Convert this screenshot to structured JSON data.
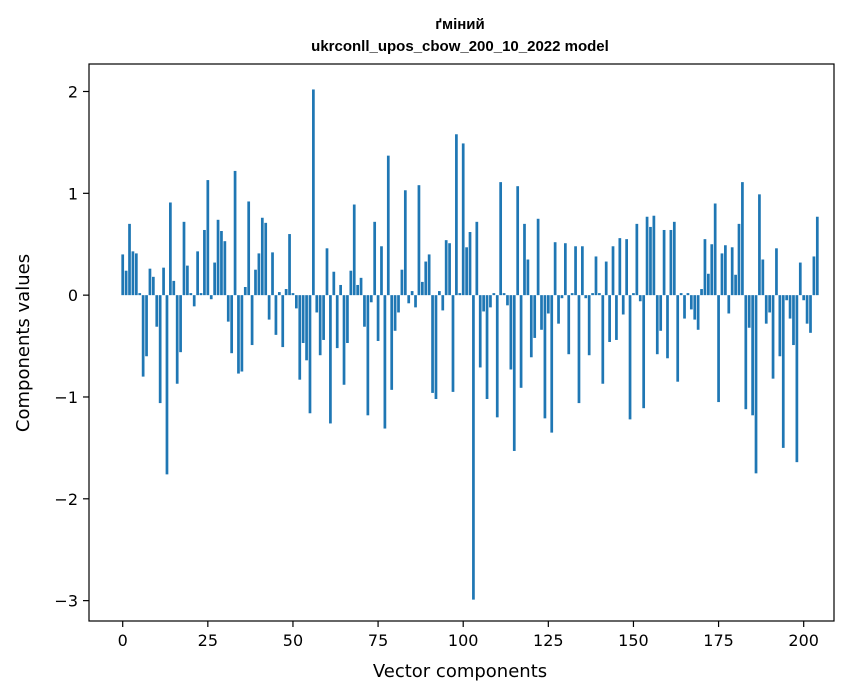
{
  "chart_data": {
    "type": "bar",
    "title": "ґміний",
    "subtitle": "ukrconll_upos_cbow_200_10_2022 model",
    "xlabel": "Vector components",
    "ylabel": "Components values",
    "xlim": [
      -9.9,
      208.9
    ],
    "ylim": [
      -3.2,
      2.27
    ],
    "xticks": [
      0,
      25,
      50,
      75,
      100,
      125,
      150,
      175,
      200
    ],
    "yticks": [
      -3,
      -2,
      -1,
      0,
      1,
      2
    ],
    "ytick_labels": [
      "−3",
      "−2",
      "−1",
      "0",
      "1",
      "2"
    ],
    "grid": false,
    "bar_color": "#1f77b4",
    "values": [
      0.4,
      0.24,
      0.7,
      0.43,
      0.41,
      0.02,
      -0.8,
      -0.6,
      0.26,
      0.18,
      -0.31,
      -1.06,
      0.27,
      -1.76,
      0.91,
      0.14,
      -0.87,
      -0.56,
      0.72,
      0.29,
      0.02,
      -0.11,
      0.43,
      0.02,
      0.64,
      1.13,
      -0.04,
      0.32,
      0.74,
      0.63,
      0.53,
      -0.26,
      -0.57,
      1.22,
      -0.77,
      -0.75,
      0.08,
      0.92,
      -0.49,
      0.25,
      0.41,
      0.76,
      0.71,
      -0.24,
      0.42,
      -0.39,
      0.03,
      -0.51,
      0.06,
      0.6,
      0.02,
      -0.13,
      -0.83,
      -0.47,
      -0.64,
      -1.16,
      2.02,
      -0.17,
      -0.59,
      -0.44,
      0.46,
      -1.26,
      0.23,
      -0.52,
      0.1,
      -0.88,
      -0.47,
      0.24,
      0.89,
      0.1,
      0.17,
      -0.31,
      -1.18,
      -0.07,
      0.72,
      -0.45,
      0.48,
      -1.31,
      1.37,
      -0.93,
      -0.35,
      -0.17,
      0.25,
      1.03,
      -0.08,
      0.04,
      -0.12,
      1.08,
      0.13,
      0.33,
      0.4,
      -0.96,
      -1.02,
      0.04,
      -0.15,
      0.54,
      0.51,
      -0.95,
      1.58,
      0.02,
      1.49,
      0.47,
      0.62,
      -2.99,
      0.72,
      -0.71,
      -0.16,
      -1.02,
      -0.12,
      0.02,
      -1.2,
      1.11,
      0.02,
      -0.1,
      -0.73,
      -1.53,
      1.07,
      -0.91,
      0.7,
      0.35,
      -0.61,
      -0.42,
      0.75,
      -0.34,
      -1.21,
      -0.18,
      -1.35,
      0.52,
      -0.28,
      -0.03,
      0.51,
      -0.58,
      0.02,
      0.48,
      -1.06,
      0.48,
      -0.03,
      -0.59,
      0.02,
      0.38,
      0.02,
      -0.87,
      0.33,
      -0.46,
      0.48,
      -0.44,
      0.56,
      -0.19,
      0.55,
      -1.22,
      0.02,
      0.7,
      -0.06,
      -1.11,
      0.77,
      0.67,
      0.78,
      -0.58,
      -0.35,
      0.64,
      -0.62,
      0.64,
      0.72,
      -0.85,
      0.02,
      -0.23,
      0.02,
      -0.14,
      -0.24,
      -0.34,
      0.06,
      0.55,
      0.21,
      0.5,
      0.9,
      -1.05,
      0.41,
      0.49,
      -0.18,
      0.47,
      0.2,
      0.7,
      1.11,
      -1.12,
      -0.32,
      -1.18,
      -1.75,
      0.99,
      0.35,
      -0.28,
      -0.17,
      -0.82,
      0.46,
      -0.6,
      -1.5,
      -0.05,
      -0.23,
      -0.49,
      -1.64,
      0.32,
      -0.05,
      -0.28,
      -0.37,
      0.38,
      0.77
    ]
  }
}
